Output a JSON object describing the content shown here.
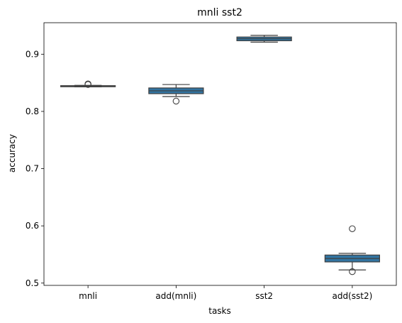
{
  "chart_data": {
    "type": "box",
    "title": "mnli sst2",
    "xlabel": "tasks",
    "ylabel": "accuracy",
    "ylim": [
      0.496,
      0.955
    ],
    "yticks": [
      0.5,
      0.6,
      0.7,
      0.8,
      0.9
    ],
    "ytick_labels": [
      "0.5",
      "0.6",
      "0.7",
      "0.8",
      "0.9"
    ],
    "categories": [
      "mnli",
      "add(mnli)",
      "sst2",
      "add(sst2)"
    ],
    "box_color": "#3274a1",
    "line_color": "#3f3f3f",
    "boxes": [
      {
        "label": "mnli",
        "whisker_low": 0.843,
        "q1": 0.8435,
        "median": 0.8443,
        "q3": 0.845,
        "whisker_high": 0.8455,
        "outliers": [
          0.848,
          0.847
        ]
      },
      {
        "label": "add(mnli)",
        "whisker_low": 0.826,
        "q1": 0.831,
        "median": 0.836,
        "q3": 0.841,
        "whisker_high": 0.847,
        "outliers": [
          0.818
        ]
      },
      {
        "label": "sst2",
        "whisker_low": 0.921,
        "q1": 0.9235,
        "median": 0.927,
        "q3": 0.93,
        "whisker_high": 0.933,
        "outliers": []
      },
      {
        "label": "add(sst2)",
        "whisker_low": 0.523,
        "q1": 0.537,
        "median": 0.543,
        "q3": 0.549,
        "whisker_high": 0.552,
        "outliers": [
          0.595,
          0.52
        ]
      }
    ]
  }
}
